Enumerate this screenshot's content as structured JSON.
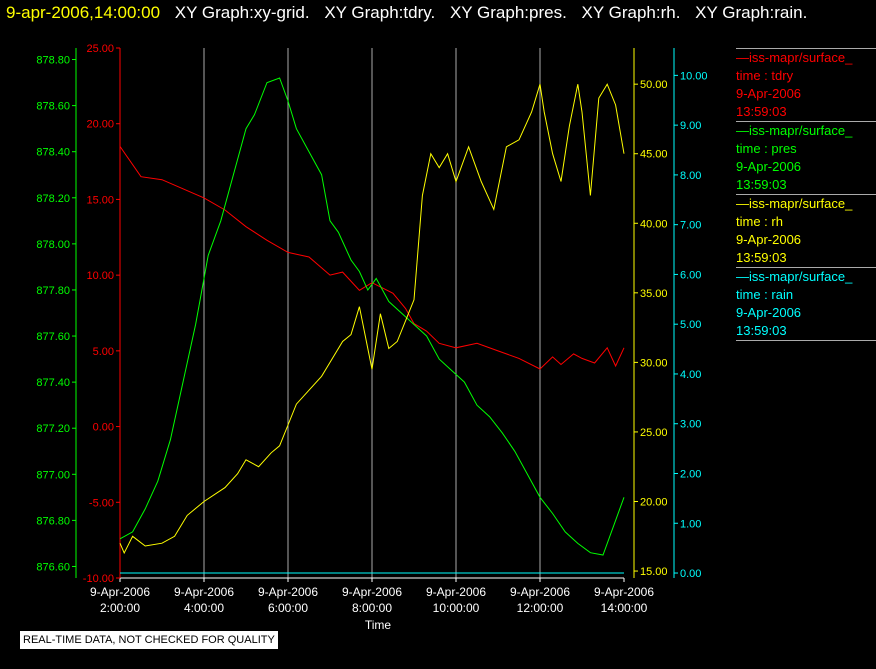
{
  "header": {
    "timestamp": "9-apr-2006,14:00:00",
    "graphs": [
      "XY Graph:xy-grid.",
      "XY Graph:tdry.",
      "XY Graph:pres.",
      "XY Graph:rh.",
      "XY Graph:rain."
    ]
  },
  "disclaimer": "REAL-TIME DATA, NOT CHECKED FOR QUALITY",
  "legend": [
    {
      "source": "iss-mapr/surface_",
      "variable": "time : tdry",
      "date": "9-Apr-2006",
      "time": "13:59:03",
      "color": "#ff0000"
    },
    {
      "source": "iss-mapr/surface_",
      "variable": "time : pres",
      "date": "9-Apr-2006",
      "time": "13:59:03",
      "color": "#00ff00"
    },
    {
      "source": "iss-mapr/surface_",
      "variable": "time : rh",
      "date": "9-Apr-2006",
      "time": "13:59:03",
      "color": "#ffff00"
    },
    {
      "source": "iss-mapr/surface_",
      "variable": "time : rain",
      "date": "9-Apr-2006",
      "time": "13:59:03",
      "color": "#00ffff"
    }
  ],
  "chart_data": {
    "type": "line",
    "xlabel": "Time",
    "grid": "vertical",
    "x_range": [
      2.0,
      14.0
    ],
    "x_ticks": [
      {
        "value": 2,
        "date": "9-Apr-2006",
        "time": "2:00:00"
      },
      {
        "value": 4,
        "date": "9-Apr-2006",
        "time": "4:00:00"
      },
      {
        "value": 6,
        "date": "9-Apr-2006",
        "time": "6:00:00"
      },
      {
        "value": 8,
        "date": "9-Apr-2006",
        "time": "8:00:00"
      },
      {
        "value": 10,
        "date": "9-Apr-2006",
        "time": "10:00:00"
      },
      {
        "value": 12,
        "date": "9-Apr-2006",
        "time": "12:00:00"
      },
      {
        "value": 14,
        "date": "9-Apr-2006",
        "time": "14:00:00"
      }
    ],
    "axes": [
      {
        "id": "pres",
        "color": "#00ff00",
        "range": [
          876.55,
          878.85
        ],
        "ticks": [
          "876.60",
          "876.80",
          "877.00",
          "877.20",
          "877.40",
          "877.60",
          "877.80",
          "878.00",
          "878.20",
          "878.40",
          "878.60",
          "878.80"
        ]
      },
      {
        "id": "tdry",
        "color": "#ff0000",
        "range": [
          -10,
          25
        ],
        "ticks": [
          "-10.00",
          "-5.00",
          "0.00",
          "5.00",
          "10.00",
          "15.00",
          "20.00",
          "25.00"
        ]
      },
      {
        "id": "rh",
        "color": "#ffff00",
        "range": [
          14.5,
          52.6
        ],
        "ticks": [
          "15.00",
          "20.00",
          "25.00",
          "30.00",
          "35.00",
          "40.00",
          "45.00",
          "50.00"
        ]
      },
      {
        "id": "rain",
        "color": "#00ffff",
        "range": [
          -0.1,
          10.55
        ],
        "ticks": [
          "0.00",
          "1.00",
          "2.00",
          "3.00",
          "4.00",
          "5.00",
          "6.00",
          "7.00",
          "8.00",
          "9.00",
          "10.00"
        ]
      }
    ],
    "series": [
      {
        "axis": "tdry",
        "color": "#ff0000",
        "x": [
          2.0,
          2.5,
          3.0,
          3.5,
          4.0,
          4.5,
          5.0,
          5.5,
          6.0,
          6.5,
          7.0,
          7.3,
          7.7,
          8.0,
          8.5,
          8.8,
          9.0,
          9.3,
          9.6,
          10.0,
          10.5,
          11.0,
          11.5,
          12.0,
          12.3,
          12.5,
          12.8,
          13.0,
          13.3,
          13.6,
          13.8,
          14.0
        ],
        "y": [
          18.5,
          16.5,
          16.3,
          15.7,
          15.1,
          14.3,
          13.2,
          12.3,
          11.5,
          11.2,
          10.0,
          10.2,
          9.0,
          9.5,
          8.8,
          7.8,
          6.8,
          6.3,
          5.5,
          5.2,
          5.5,
          5.0,
          4.5,
          3.8,
          4.6,
          4.1,
          4.8,
          4.5,
          4.2,
          5.2,
          4.0,
          5.2
        ]
      },
      {
        "axis": "pres",
        "color": "#00ff00",
        "x": [
          2.0,
          2.3,
          2.6,
          2.9,
          3.2,
          3.5,
          3.8,
          4.1,
          4.4,
          4.7,
          5.0,
          5.2,
          5.5,
          5.8,
          6.0,
          6.2,
          6.5,
          6.8,
          7.0,
          7.2,
          7.5,
          7.7,
          7.9,
          8.1,
          8.4,
          8.7,
          9.0,
          9.3,
          9.6,
          9.9,
          10.2,
          10.5,
          10.8,
          11.1,
          11.4,
          11.7,
          12.0,
          12.3,
          12.6,
          12.9,
          13.2,
          13.5,
          13.8,
          14.0
        ],
        "y": [
          876.72,
          876.75,
          876.85,
          876.97,
          877.15,
          877.4,
          877.65,
          877.95,
          878.1,
          878.3,
          878.5,
          878.56,
          878.7,
          878.72,
          878.62,
          878.5,
          878.4,
          878.3,
          878.1,
          878.05,
          877.93,
          877.88,
          877.8,
          877.85,
          877.75,
          877.7,
          877.65,
          877.6,
          877.5,
          877.45,
          877.4,
          877.3,
          877.25,
          877.18,
          877.1,
          877.0,
          876.9,
          876.83,
          876.75,
          876.7,
          876.66,
          876.65,
          876.8,
          876.9
        ]
      },
      {
        "axis": "rh",
        "color": "#ffff00",
        "x": [
          2.0,
          2.1,
          2.3,
          2.6,
          3.0,
          3.3,
          3.6,
          4.0,
          4.5,
          4.8,
          5.0,
          5.3,
          5.6,
          5.8,
          6.0,
          6.2,
          6.5,
          6.8,
          7.0,
          7.3,
          7.5,
          7.7,
          7.9,
          8.0,
          8.2,
          8.4,
          8.6,
          8.8,
          9.0,
          9.2,
          9.4,
          9.6,
          9.8,
          10.0,
          10.3,
          10.6,
          10.9,
          11.2,
          11.5,
          11.8,
          12.0,
          12.1,
          12.3,
          12.5,
          12.7,
          12.9,
          13.0,
          13.2,
          13.4,
          13.6,
          13.8,
          14.0
        ],
        "y": [
          17.0,
          16.3,
          17.5,
          16.8,
          17.0,
          17.5,
          19.0,
          20.0,
          21.0,
          22.0,
          23.0,
          22.5,
          23.5,
          24.0,
          25.5,
          27.0,
          28.0,
          29.0,
          30.0,
          31.5,
          32.0,
          34.0,
          31.0,
          29.5,
          33.5,
          31.0,
          31.5,
          33.0,
          34.5,
          42.0,
          45.0,
          44.0,
          45.0,
          43.0,
          45.5,
          43.0,
          41.0,
          45.5,
          46.0,
          48.0,
          50.0,
          48.0,
          45.0,
          43.0,
          47.0,
          50.0,
          48.0,
          42.0,
          49.0,
          50.0,
          48.5,
          45.0
        ]
      },
      {
        "axis": "rain",
        "color": "#00ffff",
        "x": [
          2.0,
          14.0
        ],
        "y": [
          0.0,
          0.0
        ]
      }
    ]
  }
}
